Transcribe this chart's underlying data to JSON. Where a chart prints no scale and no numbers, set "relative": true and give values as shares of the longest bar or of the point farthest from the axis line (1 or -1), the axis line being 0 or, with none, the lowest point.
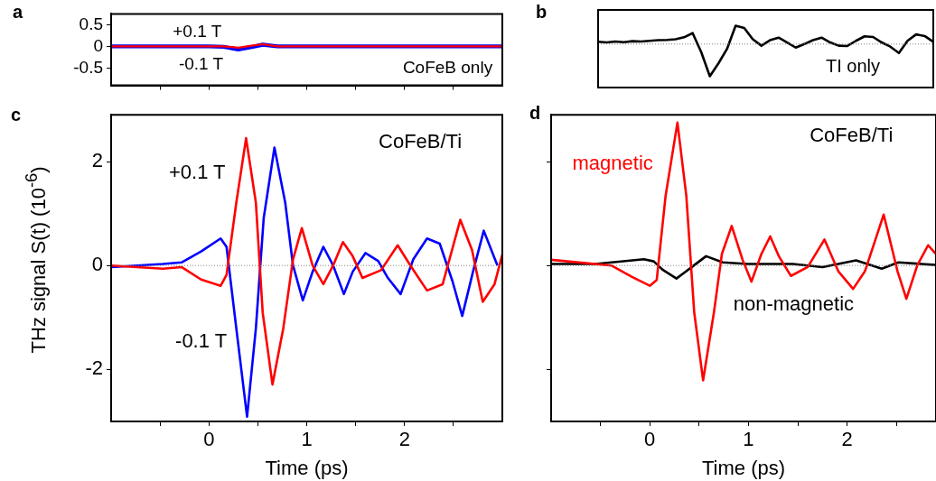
{
  "chart_data": [
    {
      "title": "a",
      "type": "line",
      "xlim": [
        -1,
        3
      ],
      "xticks": [
        -0.5,
        0,
        0.5,
        1,
        1.5,
        2,
        2.5
      ],
      "ylim": [
        -0.9,
        0.75
      ],
      "yticks": [
        -0.5,
        0,
        0.5
      ],
      "tick_labels": "y",
      "annotations": [
        "CoFeB only"
      ],
      "series": [
        {
          "name": "+0.1 T",
          "color": "#ff0000",
          "x": [
            -1,
            0,
            0.15,
            0.3,
            0.45,
            0.55,
            0.7,
            1,
            2,
            3
          ],
          "values": [
            0,
            0,
            0,
            -0.03,
            0.02,
            0.05,
            0,
            0,
            0,
            0
          ]
        },
        {
          "name": "-0.1 T",
          "color": "#0000ff",
          "x": [
            -1,
            0,
            0.15,
            0.3,
            0.45,
            0.55,
            0.7,
            1,
            2,
            3
          ],
          "values": [
            0,
            0,
            -0.01,
            -0.07,
            -0.01,
            0.04,
            0,
            0,
            0,
            0
          ]
        }
      ]
    },
    {
      "title": "b",
      "type": "line",
      "relative": true,
      "tick_labels": false,
      "ref_lines": [
        {
          "axis": "y",
          "value": 0,
          "color": "#808080",
          "line_style": "dotted"
        }
      ],
      "categories": [
        null,
        null,
        null,
        null,
        null,
        null,
        null,
        null,
        null,
        null,
        null,
        null,
        null,
        null,
        null,
        null,
        null,
        null,
        null,
        null,
        null,
        null,
        null,
        null,
        null,
        null,
        null,
        null,
        null,
        null,
        null,
        null,
        null,
        null,
        null,
        null,
        null,
        null,
        null,
        null
      ],
      "annotations": [
        "TI only"
      ],
      "series": [
        {
          "color": "#000000",
          "values": [
            0.07,
            0.05,
            0.08,
            0.06,
            0.09,
            0.08,
            0.1,
            0.12,
            0.13,
            0.15,
            0.21,
            0.34,
            -0.25,
            -1,
            -0.6,
            -0.15,
            0.57,
            0.5,
            0.15,
            -0.05,
            0.12,
            0.2,
            0.05,
            -0.11,
            0,
            0.12,
            0.2,
            0.05,
            -0.05,
            -0.06,
            0.1,
            0.24,
            0.22,
            0.05,
            -0.08,
            -0.28,
            0.1,
            0.3,
            0.25,
            0.07
          ]
        }
      ]
    },
    {
      "title": "c",
      "type": "line",
      "xlabel": "Time (ps)",
      "ylabel": "THz signal S(t) (10$^{-6}$)",
      "xlim": [
        -1,
        3
      ],
      "xticks": [
        {
          "value": -0.5,
          "label": null
        },
        0,
        {
          "value": 0.5,
          "label": null
        },
        1,
        {
          "value": 1.5,
          "label": null
        },
        2,
        {
          "value": 2.5,
          "label": null
        }
      ],
      "ylim": [
        -3,
        2.9
      ],
      "yticks": [
        -2,
        0,
        2
      ],
      "ref_lines": [
        {
          "axis": "y",
          "value": 0,
          "color": "#808080",
          "line_style": "dotted"
        }
      ],
      "annotations": [
        "CoFeB/Ti"
      ],
      "series": [
        {
          "name": "+0.1 T",
          "color": "#ff0000",
          "x": [
            -1,
            -0.47,
            -0.28,
            -0.08,
            0.12,
            0.18,
            0.28,
            0.38,
            0.48,
            0.55,
            0.65,
            0.76,
            0.86,
            0.95,
            1.06,
            1.17,
            1.27,
            1.37,
            1.47,
            1.57,
            1.76,
            1.93,
            2.06,
            2.23,
            2.39,
            2.57,
            2.69,
            2.8,
            2.92,
            3
          ],
          "values": [
            0,
            -0.06,
            -0.03,
            -0.27,
            -0.39,
            -0.18,
            1.21,
            2.45,
            1.21,
            -0.91,
            -2.29,
            -1.21,
            0.12,
            0.72,
            0,
            -0.36,
            0,
            0.45,
            0.18,
            -0.24,
            -0.09,
            0.39,
            0,
            -0.48,
            -0.36,
            0.88,
            0.3,
            -0.7,
            -0.36,
            0.21
          ]
        },
        {
          "name": "-0.1 T",
          "color": "#0000ff",
          "x": [
            -1,
            -0.47,
            -0.28,
            -0.08,
            0.12,
            0.18,
            0.28,
            0.39,
            0.48,
            0.56,
            0.67,
            0.78,
            0.86,
            0.96,
            1.06,
            1.17,
            1.27,
            1.38,
            1.47,
            1.6,
            1.73,
            1.83,
            1.96,
            2.09,
            2.23,
            2.36,
            2.49,
            2.59,
            2.7,
            2.81,
            2.95
          ],
          "values": [
            -0.03,
            0.03,
            0.06,
            0.27,
            0.52,
            0.36,
            -1.21,
            -2.91,
            -1.21,
            0.91,
            2.27,
            1.21,
            0,
            -0.67,
            -0.12,
            0.36,
            0,
            -0.55,
            -0.12,
            0.24,
            0.09,
            -0.24,
            -0.55,
            0.12,
            0.52,
            0.42,
            -0.3,
            -0.97,
            -0.12,
            0.67,
            0
          ]
        }
      ]
    },
    {
      "title": "d",
      "type": "line",
      "xlabel": "Time (ps)",
      "xlim": [
        -1,
        2.9
      ],
      "xticks": [
        {
          "value": -0.5,
          "label": null
        },
        0,
        {
          "value": 0.5,
          "label": null
        },
        1,
        {
          "value": 1.5,
          "label": null
        },
        2,
        {
          "value": 2.5,
          "label": null
        }
      ],
      "ylim": [
        -3,
        2.9
      ],
      "yticks": [
        -2,
        0,
        2
      ],
      "tick_labels": "x",
      "ref_lines": [
        {
          "axis": "y",
          "value": 0,
          "color": "#808080",
          "line_style": "dotted"
        }
      ],
      "annotations": [
        "CoFeB/Ti"
      ],
      "series": [
        {
          "name": "magnetic",
          "color": "#ff0000",
          "x": [
            -1,
            -0.39,
            -0.18,
            0,
            0.07,
            0.16,
            0.28,
            0.37,
            0.45,
            0.54,
            0.65,
            0.73,
            0.83,
            0.94,
            1.03,
            1.13,
            1.22,
            1.31,
            1.43,
            1.6,
            1.77,
            1.91,
            2.06,
            2.18,
            2.37,
            2.51,
            2.6,
            2.71,
            2.82,
            2.9
          ],
          "values": [
            0.11,
            0,
            -0.22,
            -0.39,
            -0.28,
            1.34,
            2.75,
            1.34,
            -0.9,
            -2.21,
            -0.9,
            0.22,
            0.76,
            0.11,
            -0.31,
            0.22,
            0.56,
            0.17,
            -0.2,
            -0.03,
            0.5,
            -0.11,
            -0.45,
            -0.11,
            0.98,
            -0.11,
            -0.64,
            0,
            0.39,
            0.22
          ]
        },
        {
          "name": "non-magnetic",
          "color": "#000000",
          "x": [
            -1,
            -0.55,
            -0.06,
            0.04,
            0.13,
            0.27,
            0.37,
            0.57,
            0.74,
            0.99,
            1.45,
            1.75,
            2.09,
            2.35,
            2.52,
            2.9
          ],
          "values": [
            0.03,
            0.03,
            0.12,
            0.08,
            -0.08,
            -0.25,
            -0.11,
            0.18,
            0.06,
            0.03,
            0.03,
            -0.03,
            0.1,
            -0.06,
            0.06,
            0.01
          ]
        }
      ]
    }
  ]
}
